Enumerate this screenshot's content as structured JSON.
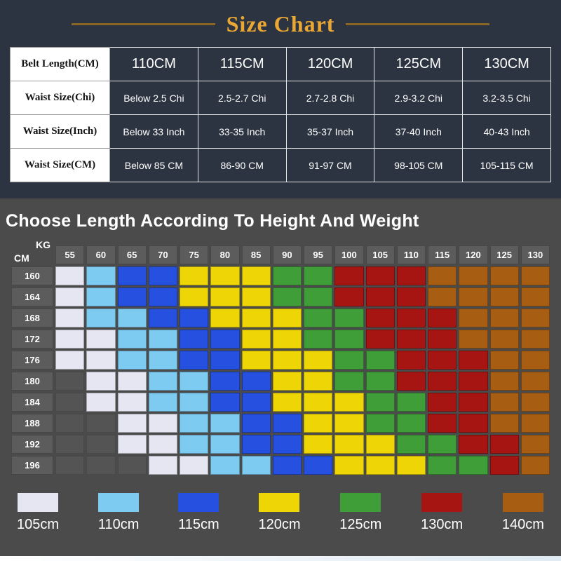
{
  "title": "Size Chart",
  "size_table": {
    "rows": [
      {
        "label": "Belt Length(CM)",
        "values": [
          "110CM",
          "115CM",
          "120CM",
          "125CM",
          "130CM"
        ]
      },
      {
        "label": "Waist Size(Chi)",
        "values": [
          "Below 2.5 Chi",
          "2.5-2.7 Chi",
          "2.7-2.8 Chi",
          "2.9-3.2 Chi",
          "3.2-3.5 Chi"
        ]
      },
      {
        "label": "Waist Size(Inch)",
        "values": [
          "Below 33 Inch",
          "33-35 Inch",
          "35-37 Inch",
          "37-40 Inch",
          "40-43 Inch"
        ]
      },
      {
        "label": "Waist Size(CM)",
        "values": [
          "Below 85 CM",
          "86-90 CM",
          "91-97 CM",
          "98-105 CM",
          "105-115 CM"
        ]
      }
    ]
  },
  "chart_data": {
    "type": "heatmap",
    "title": "Choose Length According To Height And Weight",
    "x_axis_label": "KG",
    "y_axis_label": "CM",
    "x_values_kg": [
      55,
      60,
      65,
      70,
      75,
      80,
      85,
      90,
      95,
      100,
      105,
      110,
      115,
      120,
      125,
      130
    ],
    "y_values_cm": [
      160,
      164,
      168,
      172,
      176,
      180,
      184,
      188,
      192,
      196
    ],
    "legend": [
      {
        "label": "105cm",
        "color": "#e6e6f2"
      },
      {
        "label": "110cm",
        "color": "#7ecbf2"
      },
      {
        "label": "115cm",
        "color": "#2550e0"
      },
      {
        "label": "120cm",
        "color": "#edd506"
      },
      {
        "label": "125cm",
        "color": "#3f9e38"
      },
      {
        "label": "130cm",
        "color": "#a61511"
      },
      {
        "label": "140cm",
        "color": "#a85e12"
      }
    ],
    "matrix": [
      [
        105,
        110,
        115,
        115,
        120,
        120,
        120,
        125,
        125,
        130,
        130,
        130,
        140,
        140,
        140,
        140
      ],
      [
        105,
        110,
        115,
        115,
        120,
        120,
        120,
        125,
        125,
        130,
        130,
        130,
        140,
        140,
        140,
        140
      ],
      [
        105,
        110,
        110,
        115,
        115,
        120,
        120,
        120,
        125,
        125,
        130,
        130,
        130,
        140,
        140,
        140
      ],
      [
        105,
        105,
        110,
        110,
        115,
        115,
        120,
        120,
        125,
        125,
        130,
        130,
        130,
        140,
        140,
        140
      ],
      [
        105,
        105,
        110,
        110,
        115,
        115,
        120,
        120,
        120,
        125,
        125,
        130,
        130,
        130,
        140,
        140
      ],
      [
        0,
        105,
        105,
        110,
        110,
        115,
        115,
        120,
        120,
        125,
        125,
        130,
        130,
        130,
        140,
        140
      ],
      [
        0,
        105,
        105,
        110,
        110,
        115,
        115,
        120,
        120,
        120,
        125,
        125,
        130,
        130,
        140,
        140
      ],
      [
        0,
        0,
        105,
        105,
        110,
        110,
        115,
        115,
        120,
        120,
        125,
        125,
        130,
        130,
        140,
        140
      ],
      [
        0,
        0,
        105,
        105,
        110,
        110,
        115,
        115,
        120,
        120,
        120,
        125,
        125,
        130,
        130,
        140
      ],
      [
        0,
        0,
        0,
        105,
        105,
        110,
        110,
        115,
        115,
        120,
        120,
        120,
        125,
        125,
        130,
        140
      ]
    ]
  }
}
